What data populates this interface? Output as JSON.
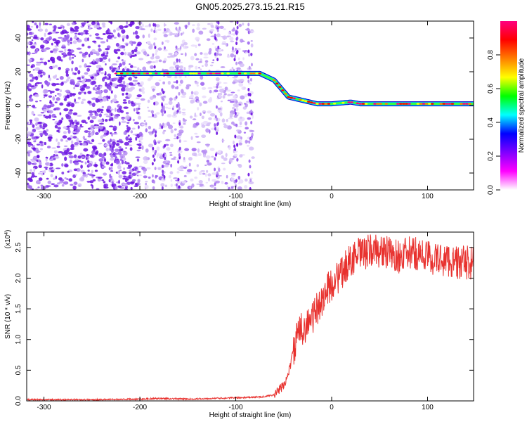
{
  "title": "GN05.2025.273.15.21.R15",
  "chart_data": [
    {
      "type": "heatmap",
      "xlabel": "Height of straight line (km)",
      "ylabel": "Frequency (Hz)",
      "xlim": [
        -318,
        148
      ],
      "ylim": [
        -50,
        50
      ],
      "xticks": [
        -300,
        -200,
        -100,
        0,
        100
      ],
      "yticks": [
        -40,
        -20,
        0,
        20,
        40
      ],
      "colorbar": {
        "label": "Normalized spectral amplitude",
        "range": [
          0,
          1
        ],
        "ticks": [
          0.0,
          0.2,
          0.4,
          0.6,
          0.8
        ],
        "colors": [
          "#ffffff",
          "#ff00ff",
          "#7f00ff",
          "#0000ff",
          "#00ffff",
          "#00ff00",
          "#ffff00",
          "#ff7f00",
          "#ff0000",
          "#ff0080"
        ]
      },
      "ridge": {
        "name": "dominant frequency",
        "x": [
          -225,
          -200,
          -150,
          -100,
          -85,
          -75,
          -60,
          -45,
          -30,
          -15,
          0,
          20,
          30,
          60,
          100,
          148
        ],
        "y": [
          19,
          19,
          19,
          19,
          19,
          19,
          15,
          5,
          3,
          1,
          1,
          2,
          1,
          1,
          1,
          1
        ]
      },
      "noise_region": [
        -318,
        -82
      ]
    },
    {
      "type": "line",
      "xlabel": "Height of straight line (km)",
      "ylabel": "SNR (10 * v/v)",
      "y_multiplier": "(x10",
      "y_multiplier_exp": "4",
      "xlim": [
        -318,
        148
      ],
      "ylim": [
        0,
        2.75
      ],
      "xticks": [
        -300,
        -200,
        -100,
        0,
        100
      ],
      "yticks": [
        0.0,
        0.5,
        1.0,
        1.5,
        2.0,
        2.5
      ],
      "line_color": "#e8312e",
      "series": [
        {
          "x": [
            -318,
            -250,
            -200,
            -180,
            -150,
            -100,
            -80,
            -70,
            -60,
            -50,
            -45,
            -40,
            -35,
            -30,
            -25,
            -20,
            -15,
            -10,
            -5,
            0,
            5,
            10,
            15,
            20,
            25,
            30,
            35,
            40,
            50,
            60,
            70,
            80,
            90,
            100,
            110,
            120,
            130,
            148
          ],
          "values": [
            0.02,
            0.02,
            0.03,
            0.04,
            0.03,
            0.05,
            0.06,
            0.07,
            0.1,
            0.25,
            0.45,
            0.8,
            1.1,
            1.2,
            1.25,
            1.35,
            1.5,
            1.65,
            1.8,
            1.9,
            2.0,
            2.05,
            2.2,
            2.3,
            2.35,
            2.4,
            2.4,
            2.45,
            2.45,
            2.4,
            2.35,
            2.4,
            2.4,
            2.35,
            2.3,
            2.3,
            2.25,
            2.25
          ]
        }
      ]
    }
  ]
}
